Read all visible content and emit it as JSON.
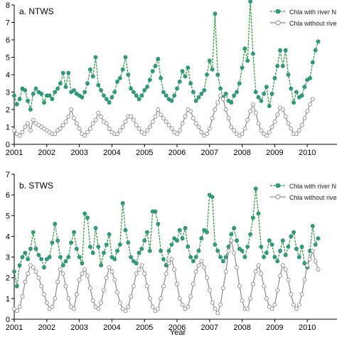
{
  "figure": {
    "xlabel": "Year"
  },
  "legend_labels": [
    "Chla with river N",
    "Chla without river N"
  ],
  "colors": {
    "with_river": "#2e9e7d",
    "with_river_line": "#1e9a2e",
    "without_river": "#8a8a8a",
    "axis": "#000000"
  },
  "chart_data": [
    {
      "type": "line",
      "title": "a. NTWS",
      "xlabel": "",
      "ylabel": "",
      "xlim": [
        2001,
        2011.0
      ],
      "ylim": [
        0,
        8
      ],
      "yticks": [
        0,
        1,
        2,
        3,
        4,
        5,
        6,
        7,
        8
      ],
      "xticks": [
        "2001",
        "2002",
        "2003",
        "2004",
        "2005",
        "2006",
        "2007",
        "2008",
        "2009",
        "2010"
      ],
      "legend": "top-right",
      "x_start": 2001.0,
      "x_step": "monthly",
      "series": [
        {
          "name": "Chla with river N",
          "values": [
            2.8,
            2.3,
            2.6,
            3.2,
            3.1,
            2.5,
            2.0,
            2.9,
            3.2,
            3.0,
            2.9,
            2.4,
            2.8,
            2.8,
            2.6,
            3.0,
            3.2,
            3.5,
            4.1,
            3.3,
            4.1,
            3.0,
            3.1,
            2.9,
            2.8,
            2.7,
            3.0,
            3.5,
            4.3,
            3.9,
            5.0,
            3.4,
            3.1,
            2.8,
            2.6,
            2.4,
            2.7,
            3.0,
            3.6,
            3.8,
            4.3,
            5.0,
            4.0,
            3.2,
            3.0,
            2.8,
            2.6,
            2.8,
            3.1,
            3.3,
            3.7,
            4.2,
            4.5,
            4.9,
            3.8,
            3.0,
            2.8,
            2.6,
            2.5,
            2.8,
            3.2,
            3.6,
            4.2,
            3.9,
            4.4,
            3.5,
            3.0,
            2.5,
            2.7,
            2.9,
            3.1,
            4.0,
            4.8,
            4.3,
            7.5,
            4.0,
            3.2,
            2.7,
            2.9,
            2.5,
            2.4,
            2.8,
            3.0,
            3.5,
            4.4,
            5.5,
            4.8,
            8.2,
            5.2,
            3.0,
            2.7,
            2.5,
            2.9,
            3.3,
            2.2,
            2.9,
            3.8,
            4.5,
            5.4,
            4.5,
            5.4,
            4.0,
            3.2,
            2.4,
            3.0,
            2.7,
            2.8,
            3.3,
            3.7,
            3.8,
            4.7,
            5.4,
            5.9
          ]
        },
        {
          "name": "Chla without river N",
          "values": [
            0.8,
            0.6,
            0.5,
            0.7,
            1.0,
            1.2,
            0.8,
            1.4,
            1.2,
            1.1,
            1.0,
            0.9,
            0.8,
            0.7,
            0.6,
            0.6,
            0.8,
            0.9,
            1.1,
            1.3,
            1.6,
            2.0,
            1.5,
            1.2,
            0.9,
            0.6,
            0.5,
            0.7,
            0.9,
            1.2,
            1.4,
            1.8,
            1.6,
            1.3,
            1.2,
            0.9,
            0.7,
            0.6,
            0.6,
            0.8,
            1.0,
            1.3,
            1.6,
            1.6,
            1.4,
            1.1,
            0.9,
            0.7,
            0.6,
            0.8,
            1.0,
            1.3,
            1.6,
            2.0,
            1.7,
            1.5,
            1.3,
            1.1,
            0.9,
            0.7,
            0.6,
            0.8,
            1.2,
            1.6,
            2.0,
            1.9,
            1.5,
            1.2,
            1.0,
            0.7,
            0.5,
            0.6,
            0.9,
            1.5,
            2.0,
            2.4,
            2.8,
            2.6,
            2.0,
            1.5,
            1.0,
            0.8,
            0.6,
            0.5,
            0.6,
            0.9,
            1.4,
            1.9,
            2.3,
            1.8,
            1.2,
            0.8,
            0.6,
            0.5,
            0.7,
            1.0,
            1.3,
            1.7,
            2.1,
            2.0,
            1.6,
            1.2,
            0.9,
            0.6,
            0.6,
            0.8,
            1.1,
            1.5,
            1.9,
            2.3,
            2.6
          ]
        }
      ]
    },
    {
      "type": "line",
      "title": "b. STWS",
      "xlabel": "Year",
      "ylabel": "",
      "xlim": [
        2001,
        2011.0
      ],
      "ylim": [
        0,
        7
      ],
      "yticks": [
        0,
        1,
        2,
        3,
        4,
        5,
        6,
        7
      ],
      "xticks": [
        "2001",
        "2002",
        "2003",
        "2004",
        "2005",
        "2006",
        "2007",
        "2008",
        "2009",
        "2010"
      ],
      "legend": "top-right",
      "x_start": 2001.0,
      "x_step": "monthly",
      "series": [
        {
          "name": "Chla with river N",
          "values": [
            2.3,
            1.6,
            2.6,
            3.0,
            3.2,
            2.9,
            3.4,
            4.2,
            3.4,
            3.1,
            2.9,
            2.5,
            2.9,
            3.0,
            3.7,
            4.6,
            3.8,
            3.0,
            2.6,
            2.8,
            3.0,
            3.7,
            4.2,
            3.4,
            3.0,
            2.7,
            5.1,
            4.9,
            3.5,
            3.2,
            4.4,
            3.5,
            2.6,
            3.2,
            3.6,
            4.1,
            3.0,
            2.9,
            3.3,
            3.6,
            5.6,
            4.3,
            3.7,
            3.0,
            2.8,
            2.7,
            3.2,
            3.4,
            3.8,
            4.2,
            3.3,
            5.2,
            5.2,
            4.6,
            3.3,
            2.9,
            2.6,
            3.3,
            3.6,
            3.9,
            3.8,
            4.3,
            3.9,
            4.4,
            3.5,
            3.0,
            2.8,
            3.0,
            3.3,
            3.9,
            4.3,
            4.2,
            6.0,
            5.9,
            3.6,
            3.3,
            3.0,
            2.8,
            3.0,
            3.5,
            4.1,
            4.4,
            3.8,
            3.4,
            3.3,
            3.0,
            3.5,
            4.1,
            4.9,
            6.3,
            5.1,
            3.5,
            3.0,
            3.2,
            3.8,
            3.6,
            3.0,
            2.8,
            3.3,
            3.8,
            3.1,
            3.5,
            4.0,
            4.2,
            3.4,
            3.0,
            3.5,
            2.7,
            2.5,
            3.3,
            4.5,
            3.6,
            3.9
          ]
        },
        {
          "name": "Chla without river N",
          "values": [
            0.5,
            0.4,
            0.6,
            1.1,
            1.8,
            2.2,
            2.6,
            2.5,
            2.3,
            2.0,
            1.6,
            1.2,
            0.8,
            0.5,
            0.6,
            1.0,
            1.8,
            2.4,
            2.2,
            1.6,
            1.0,
            0.6,
            0.5,
            1.2,
            1.9,
            2.2,
            2.4,
            2.1,
            1.5,
            0.9,
            0.6,
            0.5,
            0.8,
            1.4,
            2.0,
            2.5,
            2.3,
            1.9,
            1.3,
            0.8,
            0.5,
            0.4,
            0.6,
            1.1,
            1.6,
            2.2,
            2.4,
            2.6,
            2.2,
            1.6,
            1.0,
            0.6,
            0.4,
            0.5,
            1.0,
            1.6,
            2.2,
            2.7,
            2.9,
            2.4,
            1.7,
            1.0,
            0.7,
            0.5,
            0.6,
            1.1,
            1.7,
            2.3,
            2.6,
            2.8,
            2.5,
            2.0,
            1.4,
            0.8,
            0.5,
            0.3,
            0.7,
            1.5,
            2.3,
            3.3,
            3.8,
            3.2,
            2.5,
            1.6,
            0.9,
            0.5,
            0.5,
            1.0,
            1.7,
            2.3,
            2.6,
            2.2,
            1.6,
            1.0,
            0.6,
            0.5,
            0.7,
            1.4,
            2.1,
            2.6,
            2.4,
            1.9,
            1.2,
            0.7,
            0.5,
            0.7,
            1.2,
            1.9,
            2.6,
            2.9,
            3.3,
            2.8,
            2.4
          ]
        }
      ]
    }
  ]
}
